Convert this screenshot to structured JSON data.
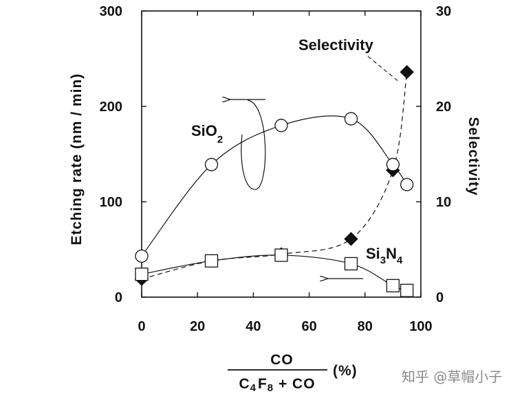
{
  "chart_data": {
    "type": "line",
    "x": [
      0,
      25,
      50,
      75,
      90,
      95
    ],
    "series": [
      {
        "name": "SiO2",
        "axis": "left",
        "marker": "open-circle",
        "line": "solid",
        "x": [
          0,
          25,
          50,
          75,
          90,
          95
        ],
        "values": [
          43,
          139,
          180,
          187,
          139,
          118
        ]
      },
      {
        "name": "Si3N4",
        "axis": "left",
        "marker": "open-square",
        "line": "solid",
        "x": [
          0,
          25,
          50,
          75,
          90,
          95
        ],
        "values": [
          24,
          38,
          44,
          35,
          12,
          7
        ]
      },
      {
        "name": "Selectivity",
        "axis": "right",
        "marker": "filled-diamond",
        "line": "dashed",
        "x": [
          0,
          25,
          50,
          75,
          90,
          95
        ],
        "values": [
          1.9,
          3.8,
          4.5,
          6.1,
          13.3,
          23.6
        ]
      }
    ],
    "xlim": [
      0,
      100
    ],
    "ylim": [
      0,
      300
    ],
    "y2lim": [
      0,
      30
    ],
    "xticks": [
      "0",
      "20",
      "40",
      "60",
      "80",
      "100"
    ],
    "yticks": [
      "0",
      "100",
      "200",
      "300"
    ],
    "y2ticks": [
      "0",
      "10",
      "20",
      "30"
    ],
    "ylabel": "Etching rate (nm / min)",
    "y2label": "Selectivity",
    "xlabel": {
      "numerator": "CO",
      "den_c": "C",
      "den_4": "4",
      "den_f": "F",
      "den_8": "8",
      "den_rest": " + CO",
      "unit": "(%)"
    },
    "annotations": {
      "sio2": {
        "base": "SiO",
        "sub": "2"
      },
      "si3n4": {
        "a": "Si",
        "b": "3",
        "c": "N",
        "d": "4"
      },
      "selectivity": "Selectivity"
    }
  },
  "watermark": "知乎 @草帽小子"
}
